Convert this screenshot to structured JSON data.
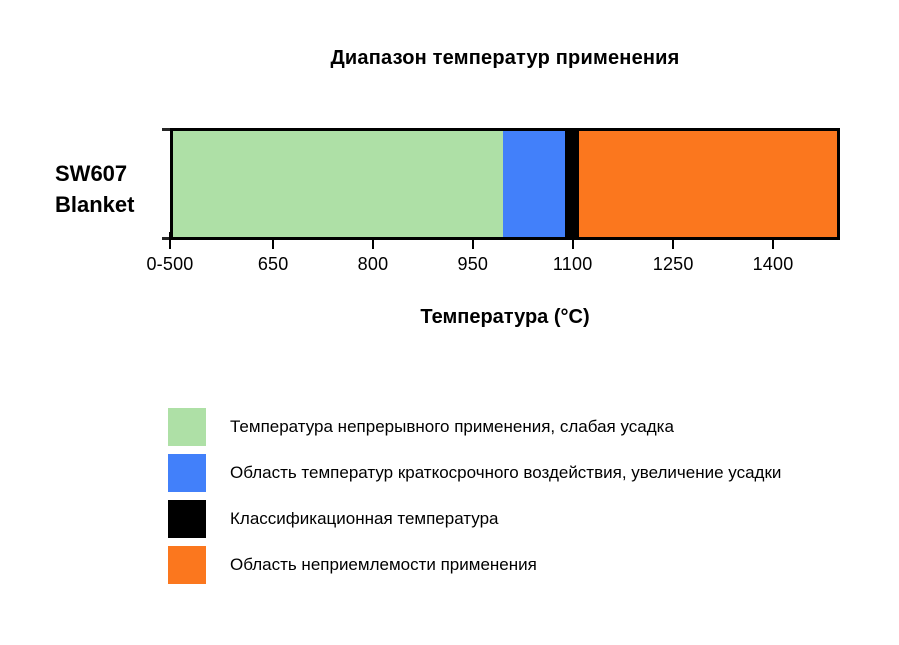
{
  "page": {
    "background": "#ffffff",
    "text_color": "#000000"
  },
  "chart": {
    "title": "Диапазон температур применения",
    "row_label_line1": "SW607",
    "row_label_line2": "Blanket",
    "axis_title": "Температура (°C)"
  },
  "chart_data": {
    "type": "bar",
    "orientation": "horizontal-stacked",
    "title": "Диапазон температур применения",
    "xlabel": "Температура (°C)",
    "row": "SW607 Blanket",
    "axis_note": "first tick represents compressed range 0-500 °C, then 150 °C per tick",
    "axis_ticks": [
      {
        "label": "0-500",
        "value": 500,
        "pos_pct": 0
      },
      {
        "label": "650",
        "value": 650,
        "pos_pct": 15.4
      },
      {
        "label": "800",
        "value": 800,
        "pos_pct": 30.3
      },
      {
        "label": "950",
        "value": 950,
        "pos_pct": 45.2
      },
      {
        "label": "1100",
        "value": 1100,
        "pos_pct": 60.1
      },
      {
        "label": "1250",
        "value": 1250,
        "pos_pct": 75.1
      },
      {
        "label": "1400",
        "value": 1400,
        "pos_pct": 90.0
      }
    ],
    "segments": [
      {
        "key": "continuous-use",
        "color": "#aee0a6",
        "width_pct": 49.7,
        "temp_range_c": "0–1000",
        "label": "Температура непрерывного применения, слабая усадка"
      },
      {
        "key": "short-term",
        "color": "#4280fa",
        "width_pct": 9.4,
        "temp_range_c": "1000–1090",
        "label": "Область температур краткосрочного воздействия, увеличение усадки"
      },
      {
        "key": "classification",
        "color": "#000000",
        "width_pct": 2.0,
        "temp_range_c": "1100",
        "label": "Классификационная температура"
      },
      {
        "key": "unacceptable",
        "color": "#fb771e",
        "width_pct": 38.9,
        "temp_range_c": "1100–1500",
        "label": "Область неприемлемости применения"
      }
    ],
    "border_color": "#000000",
    "grid": false,
    "legend_position": "bottom-left"
  },
  "legend": {
    "items": [
      {
        "key": "continuous-use",
        "color": "#aee0a6",
        "label": "Температура непрерывного применения, слабая усадка"
      },
      {
        "key": "short-term",
        "color": "#4280fa",
        "label": "Область температур краткосрочного воздействия, увеличение усадки"
      },
      {
        "key": "classification",
        "color": "#000000",
        "label": "Классификационная температура"
      },
      {
        "key": "unacceptable",
        "color": "#fb771e",
        "label": "Область неприемлемости применения"
      }
    ]
  }
}
